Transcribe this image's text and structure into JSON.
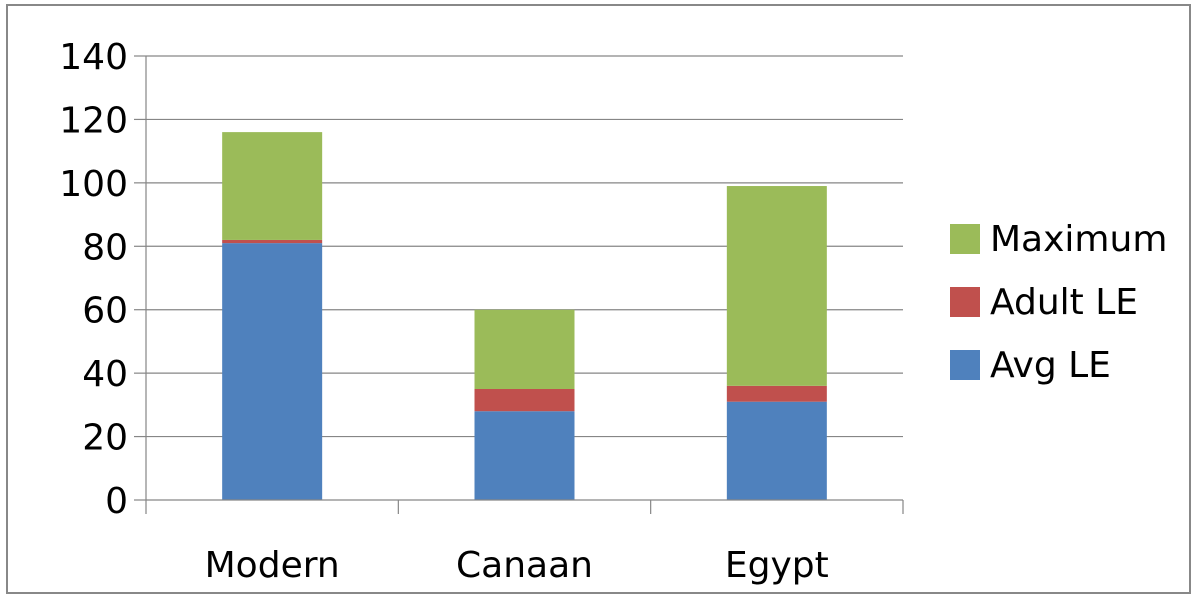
{
  "chart_data": {
    "type": "bar",
    "stacked": true,
    "categories": [
      "Modern",
      "Canaan",
      "Egypt"
    ],
    "series": [
      {
        "name": "Avg LE",
        "color": "#4f81bd",
        "values": [
          81,
          28,
          31
        ]
      },
      {
        "name": "Adult LE",
        "color": "#c0504d",
        "values": [
          1,
          7,
          5
        ]
      },
      {
        "name": "Maximum",
        "color": "#9bbb59",
        "values": [
          34,
          25,
          63
        ]
      }
    ],
    "yticks": [
      0,
      20,
      40,
      60,
      80,
      100,
      120,
      140
    ],
    "ylim": [
      0,
      140
    ],
    "grid": true,
    "legend": "right",
    "legend_order": [
      "Maximum",
      "Adult LE",
      "Avg LE"
    ]
  }
}
